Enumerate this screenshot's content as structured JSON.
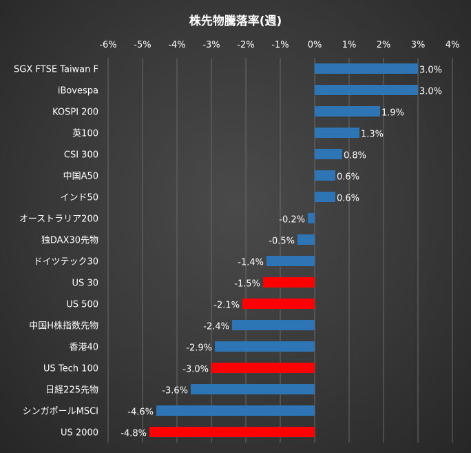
{
  "chart_data": {
    "type": "bar",
    "orientation": "horizontal",
    "title": "株先物騰落率(週)",
    "xlim": [
      -6,
      4
    ],
    "ticks": [
      -6,
      -5,
      -4,
      -3,
      -2,
      -1,
      0,
      1,
      2,
      3,
      4
    ],
    "tick_labels": [
      "-6%",
      "-5%",
      "-4%",
      "-3%",
      "-2%",
      "-1%",
      "0%",
      "1%",
      "2%",
      "3%",
      "4%"
    ],
    "categories": [
      "SGX FTSE Taiwan F",
      "iBovespa",
      "KOSPI 200",
      "英100",
      "CSI 300",
      "中国A50",
      "インド50",
      "オーストラリア200",
      "独DAX30先物",
      "ドイツテック30",
      "US 30",
      "US 500",
      "中国H株指数先物",
      "香港40",
      "US Tech 100",
      "日経225先物",
      "シンガポールMSCI",
      "US 2000"
    ],
    "values": [
      3.0,
      3.0,
      1.9,
      1.3,
      0.8,
      0.6,
      0.6,
      -0.2,
      -0.5,
      -1.4,
      -1.5,
      -2.1,
      -2.4,
      -2.9,
      -3.0,
      -3.6,
      -4.6,
      -4.8
    ],
    "value_labels": [
      "3.0%",
      "3.0%",
      "1.9%",
      "1.3%",
      "0.8%",
      "0.6%",
      "0.6%",
      "-0.2%",
      "-0.5%",
      "-1.4%",
      "-1.5%",
      "-2.1%",
      "-2.4%",
      "-2.9%",
      "-3.0%",
      "-3.6%",
      "-4.6%",
      "-4.8%"
    ],
    "highlight": [
      false,
      false,
      false,
      false,
      false,
      false,
      false,
      false,
      false,
      false,
      true,
      true,
      false,
      false,
      true,
      false,
      false,
      true
    ],
    "colors": {
      "default": "#2e75b6",
      "highlight": "#ff0000",
      "grid": "#6a6a6a"
    }
  }
}
